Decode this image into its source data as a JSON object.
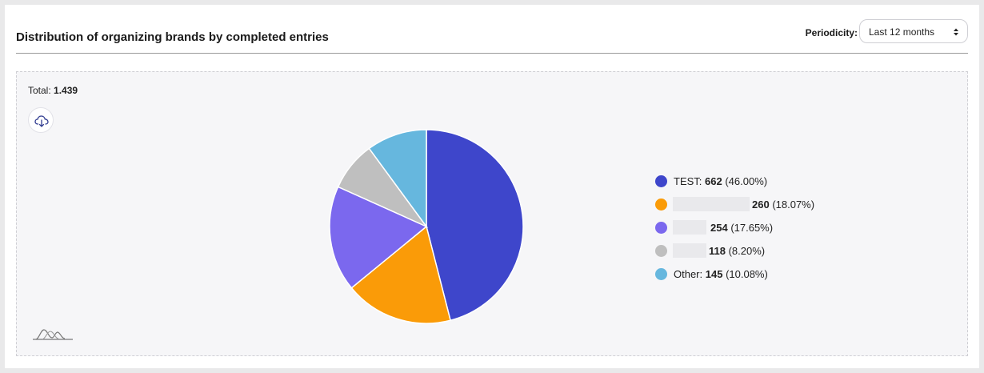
{
  "header": {
    "title": "Distribution of organizing brands by completed entries",
    "periodicity_label": "Periodicity:",
    "periodicity_value": "Last 12 months"
  },
  "panel": {
    "total_label": "Total:",
    "total_value": "1.439"
  },
  "icons": {
    "download": "cloud-download-icon",
    "logo": "brand-logo-mark",
    "select": "up-down-arrows-icon"
  },
  "chart_data": {
    "type": "pie",
    "total": 1439,
    "slices": [
      {
        "label": "TEST",
        "value": 662,
        "percent": "46.00%",
        "color": "#3e46cb"
      },
      {
        "label": "",
        "value": 260,
        "percent": "18.07%",
        "color": "#fa9b08"
      },
      {
        "label": "",
        "value": 254,
        "percent": "17.65%",
        "color": "#7b68ee"
      },
      {
        "label": "",
        "value": 118,
        "percent": "8.20%",
        "color": "#bfbfbf"
      },
      {
        "label": "Other",
        "value": 145,
        "percent": "10.08%",
        "color": "#66b7de"
      }
    ]
  },
  "legend": [
    {
      "name": "TEST:",
      "value": "662",
      "pct": "(46.00%)"
    },
    {
      "name": "",
      "value": "260",
      "pct": "(18.07%)"
    },
    {
      "name": "",
      "value": "254",
      "pct": "(17.65%)"
    },
    {
      "name": "",
      "value": "118",
      "pct": "(8.20%)"
    },
    {
      "name": "Other:",
      "value": "145",
      "pct": "(10.08%)"
    }
  ]
}
